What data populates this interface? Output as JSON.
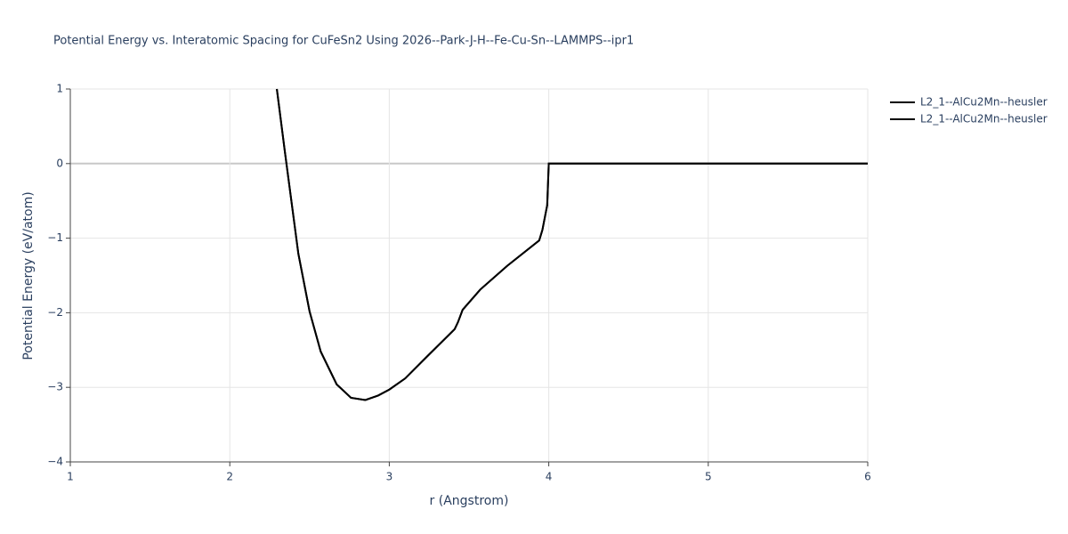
{
  "chart_data": {
    "type": "line",
    "title": "Potential Energy vs. Interatomic Spacing for CuFeSn2 Using 2026--Park-J-H--Fe-Cu-Sn--LAMMPS--ipr1",
    "xlabel": "r (Angstrom)",
    "ylabel": "Potential Energy (eV/atom)",
    "xlim": [
      1,
      6
    ],
    "ylim": [
      -4,
      1
    ],
    "xticks": [
      1,
      2,
      3,
      4,
      5,
      6
    ],
    "yticks": [
      {
        "value": -4,
        "label": "−4"
      },
      {
        "value": -3,
        "label": "−3"
      },
      {
        "value": -2,
        "label": "−2"
      },
      {
        "value": -1,
        "label": "−1"
      },
      0,
      1
    ],
    "grid": true,
    "legend": "top-right",
    "series": [
      {
        "name": "L2_1--AlCu2Mn--heusler",
        "color": "#000000",
        "x": [
          2.295,
          2.345,
          2.43,
          2.5,
          2.57,
          2.67,
          2.76,
          2.85,
          2.93,
          3.0,
          3.1,
          3.24,
          3.41,
          3.43,
          3.46,
          3.57,
          3.74,
          3.94,
          3.96,
          3.99,
          4.0,
          4.5,
          5.0,
          5.5,
          6.0
        ],
        "values": [
          1,
          0.165,
          -1.21,
          -1.98,
          -2.52,
          -2.96,
          -3.14,
          -3.17,
          -3.11,
          -3.03,
          -2.88,
          -2.58,
          -2.22,
          -2.13,
          -1.96,
          -1.69,
          -1.37,
          -1.03,
          -0.89,
          -0.56,
          0,
          0,
          0,
          0,
          0
        ]
      },
      {
        "name": "L2_1--AlCu2Mn--heusler",
        "color": "#000000",
        "x": [
          2.295,
          2.345,
          2.43,
          2.5,
          2.57,
          2.67,
          2.76,
          2.85,
          2.93,
          3.0,
          3.1,
          3.24,
          3.41,
          3.43,
          3.46,
          3.57,
          3.74,
          3.94,
          3.96,
          3.99,
          4.0,
          4.5,
          5.0,
          5.5,
          6.0
        ],
        "values": [
          1,
          0.165,
          -1.21,
          -1.98,
          -2.52,
          -2.96,
          -3.14,
          -3.17,
          -3.11,
          -3.03,
          -2.88,
          -2.58,
          -2.22,
          -2.13,
          -1.96,
          -1.69,
          -1.37,
          -1.03,
          -0.89,
          -0.56,
          0,
          0,
          0,
          0,
          0
        ]
      }
    ]
  }
}
